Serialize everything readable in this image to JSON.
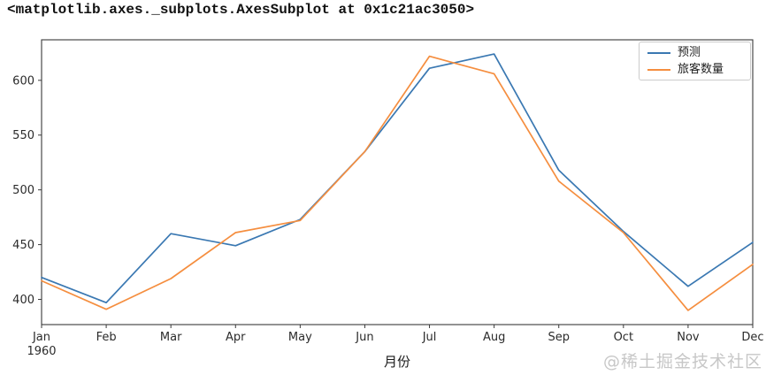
{
  "console": {
    "repr_text": "<matplotlib.axes._subplots.AxesSubplot at 0x1c21ac3050>"
  },
  "chart_data": {
    "type": "line",
    "x": [
      "Jan",
      "Feb",
      "Mar",
      "Apr",
      "May",
      "Jun",
      "Jul",
      "Aug",
      "Sep",
      "Oct",
      "Nov",
      "Dec"
    ],
    "x_first_tick_year": "1960",
    "xlabel": "月份",
    "ylim": [
      377,
      637
    ],
    "yticks": [
      400,
      450,
      500,
      550,
      600
    ],
    "grid": false,
    "legend_position": "upper right",
    "series": [
      {
        "name": "预测",
        "color": "#3a78b2",
        "values": [
          420,
          397,
          460,
          449,
          473,
          535,
          611,
          624,
          518,
          462,
          412,
          452
        ]
      },
      {
        "name": "旅客数量",
        "color": "#f58e3f",
        "values": [
          417,
          391,
          419,
          461,
          472,
          535,
          622,
          606,
          508,
          461,
          390,
          432
        ]
      }
    ]
  },
  "watermark": {
    "text": "@稀土掘金技术社区"
  }
}
